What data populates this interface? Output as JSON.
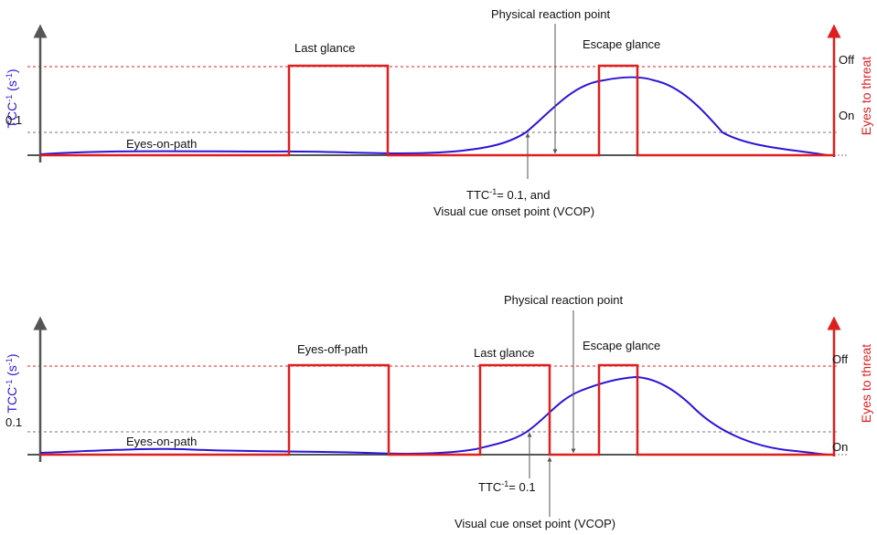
{
  "colors": {
    "tcc": "#2a14d6",
    "glance": "#dd1f1f",
    "axis": "#555555",
    "threshold": "#777777"
  },
  "panels": [
    {
      "y_axis_label": "TCC",
      "y_axis_label_sup": "-1",
      "y_axis_label_unit": " (s",
      "y_axis_label_unit_sup": "-1",
      "y_axis_label_close": ")",
      "right_axis_label": "Eyes to threat",
      "tick_threshold": "0.1",
      "state_off": "Off",
      "state_on": "On",
      "eyes_on_path": "Eyes-on-path",
      "glances": [
        "Last glance",
        "Escape glance"
      ],
      "physical_reaction": "Physical reaction point",
      "ttc_prefix": "TTC",
      "ttc_sup": "-1",
      "ttc_suffix": "= 0.1, and",
      "vcop": "Visual cue onset point (VCOP)"
    },
    {
      "y_axis_label": "TCC",
      "y_axis_label_sup": "-1",
      "y_axis_label_unit": " (s",
      "y_axis_label_unit_sup": "-1",
      "y_axis_label_close": ")",
      "right_axis_label": "Eyes to threat",
      "tick_threshold": "0.1",
      "state_off": "Off",
      "state_on": "On",
      "eyes_on_path": "Eyes-on-path",
      "glances": [
        "Eyes-off-path",
        "Last glance",
        "Escape glance"
      ],
      "physical_reaction": "Physical reaction point",
      "ttc_prefix": "TTC",
      "ttc_sup": "-1",
      "ttc_suffix": "= 0.1",
      "vcop": "Visual cue onset point (VCOP)"
    }
  ]
}
